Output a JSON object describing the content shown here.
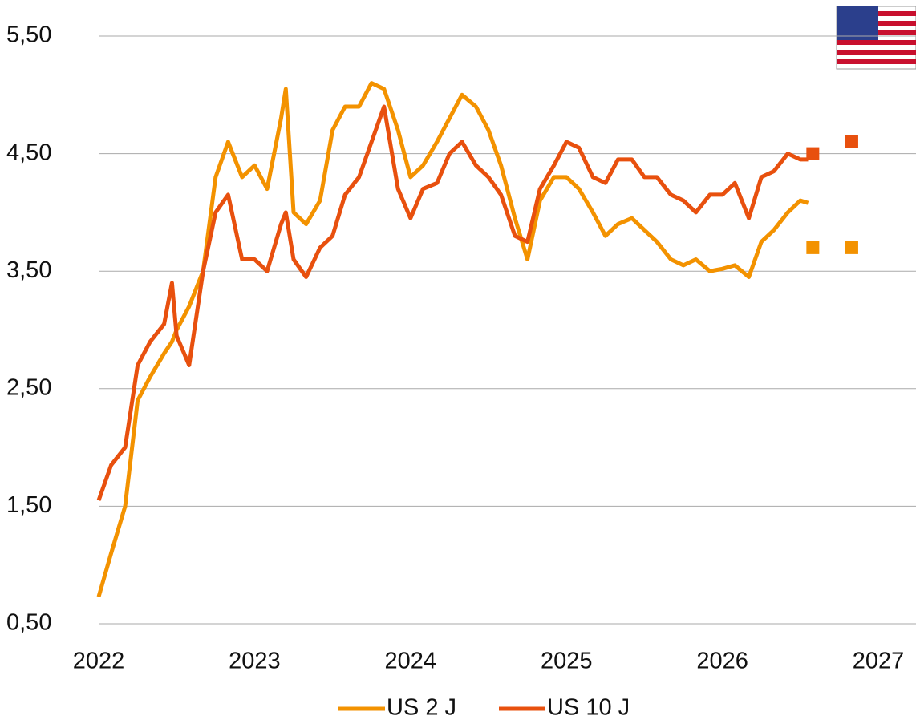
{
  "chart_data": {
    "type": "line",
    "x": [
      2022.0,
      2022.08,
      2022.17,
      2022.25,
      2022.33,
      2022.42,
      2022.47,
      2022.5,
      2022.58,
      2022.67,
      2022.75,
      2022.83,
      2022.92,
      2023.0,
      2023.08,
      2023.17,
      2023.2,
      2023.25,
      2023.33,
      2023.42,
      2023.5,
      2023.58,
      2023.67,
      2023.75,
      2023.83,
      2023.92,
      2024.0,
      2024.08,
      2024.17,
      2024.25,
      2024.33,
      2024.42,
      2024.5,
      2024.58,
      2024.67,
      2024.75,
      2024.83,
      2024.92,
      2025.0,
      2025.08,
      2025.17,
      2025.25,
      2025.33,
      2025.42,
      2025.5,
      2025.58,
      2025.67,
      2025.75,
      2025.83,
      2025.92,
      2026.0,
      2026.08,
      2026.17,
      2026.25,
      2026.33,
      2026.42,
      2026.5,
      2026.55
    ],
    "series": [
      {
        "name": "US 2 J",
        "color": "#f39200",
        "values": [
          0.73,
          1.1,
          1.5,
          2.4,
          2.6,
          2.8,
          2.9,
          3.0,
          3.2,
          3.5,
          4.3,
          4.6,
          4.3,
          4.4,
          4.2,
          4.8,
          5.05,
          4.0,
          3.9,
          4.1,
          4.7,
          4.9,
          4.9,
          5.1,
          5.05,
          4.7,
          4.3,
          4.4,
          4.6,
          4.8,
          5.0,
          4.9,
          4.7,
          4.4,
          3.95,
          3.6,
          4.1,
          4.3,
          4.3,
          4.2,
          4.0,
          3.8,
          3.9,
          3.95,
          3.85,
          3.75,
          3.6,
          3.55,
          3.6,
          3.5,
          3.52,
          3.55,
          3.45,
          3.75,
          3.85,
          4.0,
          4.1,
          4.08
        ],
        "forecast": {
          "x": [
            2026.58,
            2026.83
          ],
          "values": [
            3.7,
            3.7
          ]
        }
      },
      {
        "name": "US 10 J",
        "color": "#e8500e",
        "values": [
          1.55,
          1.85,
          2.0,
          2.7,
          2.9,
          3.05,
          3.4,
          2.95,
          2.7,
          3.5,
          4.0,
          4.15,
          3.6,
          3.6,
          3.5,
          3.9,
          4.0,
          3.6,
          3.45,
          3.7,
          3.8,
          4.15,
          4.3,
          4.6,
          4.9,
          4.2,
          3.95,
          4.2,
          4.25,
          4.5,
          4.6,
          4.4,
          4.3,
          4.15,
          3.8,
          3.75,
          4.2,
          4.4,
          4.6,
          4.55,
          4.3,
          4.25,
          4.45,
          4.45,
          4.3,
          4.3,
          4.15,
          4.1,
          4.0,
          4.15,
          4.15,
          4.25,
          3.95,
          4.3,
          4.35,
          4.5,
          4.45,
          4.45
        ],
        "forecast": {
          "x": [
            2026.58,
            2026.83
          ],
          "values": [
            4.5,
            4.6
          ]
        }
      }
    ],
    "xlim": [
      2022,
      2027
    ],
    "xticks": [
      2022,
      2023,
      2024,
      2025,
      2026,
      2027
    ],
    "ylim": [
      0.5,
      5.5
    ],
    "yticks": [
      {
        "value": 0.5,
        "label": "0,50"
      },
      {
        "value": 1.5,
        "label": "1,50"
      },
      {
        "value": 2.5,
        "label": "2,50"
      },
      {
        "value": 3.5,
        "label": "3,50"
      },
      {
        "value": 4.5,
        "label": "4,50"
      },
      {
        "value": 5.5,
        "label": "5,50"
      }
    ],
    "grid": true,
    "legend": "bottom"
  }
}
